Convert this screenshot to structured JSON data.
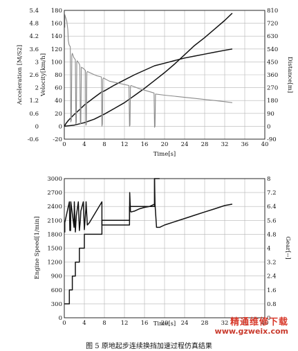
{
  "chart_data": [
    {
      "type": "line",
      "xlabel": "Time[s]",
      "xlim": [
        0,
        40
      ],
      "xticks": [
        0,
        4,
        8,
        12,
        16,
        20,
        24,
        28,
        32,
        36,
        40
      ],
      "y_left_outer": {
        "label": "Acceleration [M/S2]",
        "lim": [
          -0.6,
          5.4
        ],
        "ticks": [
          "-0.6",
          "0",
          "0.6",
          "1.2",
          "2",
          "2.6",
          "3",
          "3.6",
          "4.2",
          "4.8",
          "5.4"
        ]
      },
      "y_left_inner": {
        "label": "Velocity[km/h]",
        "lim": [
          -20,
          180
        ],
        "ticks": [
          -20,
          0,
          20,
          40,
          60,
          80,
          100,
          120,
          140,
          160,
          180
        ]
      },
      "y_right": {
        "label": "Distance[m]",
        "lim": [
          -90,
          810
        ],
        "ticks": [
          -90,
          0,
          90,
          180,
          270,
          360,
          450,
          540,
          630,
          720,
          810
        ]
      },
      "grid": true,
      "series": [
        {
          "color": "#111111",
          "axis": "velocity",
          "x": [
            0,
            0.3,
            0.8,
            1.3,
            1.8,
            2.5,
            3.2,
            4.0,
            5.0,
            6.0,
            7.4,
            8,
            10,
            12,
            14,
            16,
            18,
            20,
            22,
            24,
            26,
            28,
            30,
            32,
            33.5
          ],
          "y": [
            0,
            4,
            9,
            13,
            17,
            22,
            27,
            33,
            39,
            45,
            53,
            55,
            64,
            72,
            80,
            87,
            94,
            98,
            102,
            106,
            109,
            112,
            115,
            118,
            120
          ]
        },
        {
          "color": "#111111",
          "axis": "distance",
          "x": [
            0,
            2,
            4,
            6,
            8,
            10,
            12,
            14,
            16,
            18,
            20,
            22,
            24,
            26,
            28,
            30,
            32,
            33.5
          ],
          "y": [
            0,
            8,
            25,
            50,
            85,
            125,
            165,
            215,
            265,
            320,
            375,
            435,
            500,
            565,
            620,
            680,
            740,
            790
          ]
        },
        {
          "color": "#8a8a8a",
          "axis": "acceleration",
          "x": [
            0.1,
            0.1,
            0.5,
            0.7,
            0.8,
            0.95,
            1.2,
            1.3,
            1.4,
            1.5,
            1.6,
            1.9,
            2.2,
            2.3,
            2.4,
            2.5,
            2.6,
            3.0,
            3.1,
            3.2,
            3.3,
            3.4,
            3.8,
            4.2,
            4.3,
            4.4,
            4.5,
            4.6,
            5.5,
            6.5,
            7.4,
            7.5,
            7.6,
            7.7,
            7.8,
            9,
            11,
            12.9,
            13.0,
            13.1,
            13.2,
            13.3,
            15,
            17.9,
            18.0,
            18.1,
            18.2,
            18.3,
            20,
            22,
            24,
            26,
            28,
            30,
            32,
            33.5
          ],
          "y": [
            4.6,
            5.2,
            4.9,
            4.5,
            4.0,
            3.8,
            3.7,
            0.2,
            0.3,
            3.3,
            3.4,
            3.2,
            3.1,
            0.1,
            0.2,
            3.0,
            3.05,
            2.9,
            2.8,
            0.1,
            0.15,
            2.75,
            2.7,
            2.6,
            0.05,
            0.1,
            2.5,
            2.55,
            2.45,
            2.35,
            2.3,
            0.0,
            0.1,
            2.2,
            2.25,
            2.1,
            2.0,
            1.9,
            0.0,
            0.05,
            1.85,
            1.9,
            1.75,
            1.55,
            -0.05,
            0.0,
            1.5,
            1.5,
            1.45,
            1.4,
            1.35,
            1.3,
            1.25,
            1.2,
            1.15,
            1.1
          ]
        }
      ]
    },
    {
      "type": "line",
      "xlabel": "Time[s]",
      "xlim": [
        0,
        40
      ],
      "xticks": [
        0,
        4,
        8,
        12,
        16,
        20,
        24,
        28,
        32,
        36,
        40
      ],
      "y_left": {
        "label": "Engine Speed[1/min]",
        "lim": [
          0,
          3000
        ],
        "ticks": [
          0,
          300,
          600,
          900,
          1200,
          1500,
          1800,
          2100,
          2400,
          2700,
          3000
        ]
      },
      "y_right": {
        "label": "Gear[--]",
        "lim": [
          0,
          8
        ],
        "ticks": [
          "0",
          "0.8",
          "1.6",
          "2.4",
          "3.2",
          "4",
          "4.8",
          "5.6",
          "6.4",
          "7.2",
          "8"
        ]
      },
      "grid": true,
      "series": [
        {
          "color": "#111111",
          "axis": "engine_speed",
          "x": [
            0,
            0.1,
            0.1,
            1.0,
            1.1,
            1.25,
            1.3,
            1.95,
            2.0,
            2.2,
            2.4,
            2.8,
            3.0,
            3.2,
            3.3,
            3.8,
            4.0,
            4.3,
            4.35,
            4.6,
            5.0,
            7.5,
            7.5,
            8.0,
            9.0,
            10.0,
            11.0,
            12.0,
            13.0,
            13.05,
            13.2,
            13.3,
            14.0,
            15.0,
            16.0,
            17.0,
            18.0,
            18.0,
            18.1,
            18.4,
            19.0,
            20.0,
            22.0,
            24.0,
            26.0,
            28.0,
            30.0,
            32.0,
            33.5
          ],
          "y": [
            1850,
            1850,
            2050,
            2500,
            1880,
            1880,
            2500,
            1950,
            2500,
            1850,
            2200,
            2500,
            1880,
            2100,
            2300,
            2500,
            1900,
            2350,
            2500,
            2000,
            2050,
            2500,
            2000,
            2000,
            2000,
            2000,
            2000,
            2000,
            2000,
            2700,
            2300,
            2280,
            2300,
            2350,
            2380,
            2400,
            2450,
            3000,
            2450,
            1950,
            1950,
            2000,
            2070,
            2140,
            2210,
            2280,
            2350,
            2420,
            2450
          ]
        },
        {
          "color": "#111111",
          "axis": "gear",
          "x": [
            0,
            1.0,
            1.0,
            1.6,
            1.6,
            2.2,
            2.2,
            3.0,
            3.0,
            4.0,
            4.0,
            7.5,
            7.5,
            13.0,
            13.0,
            18.0,
            18.0,
            19.0
          ],
          "y": [
            0.8,
            0.8,
            1.6,
            1.6,
            2.4,
            2.4,
            3.2,
            3.2,
            4.0,
            4.0,
            4.8,
            4.8,
            5.6,
            5.6,
            6.4,
            6.4,
            8.0,
            8.0
          ]
        }
      ]
    }
  ],
  "caption": "图 5    原地起步连续换挡加速过程仿真结果",
  "watermark": {
    "site_cn": "精通维修下载",
    "site_url": "www.gzweix.com"
  }
}
